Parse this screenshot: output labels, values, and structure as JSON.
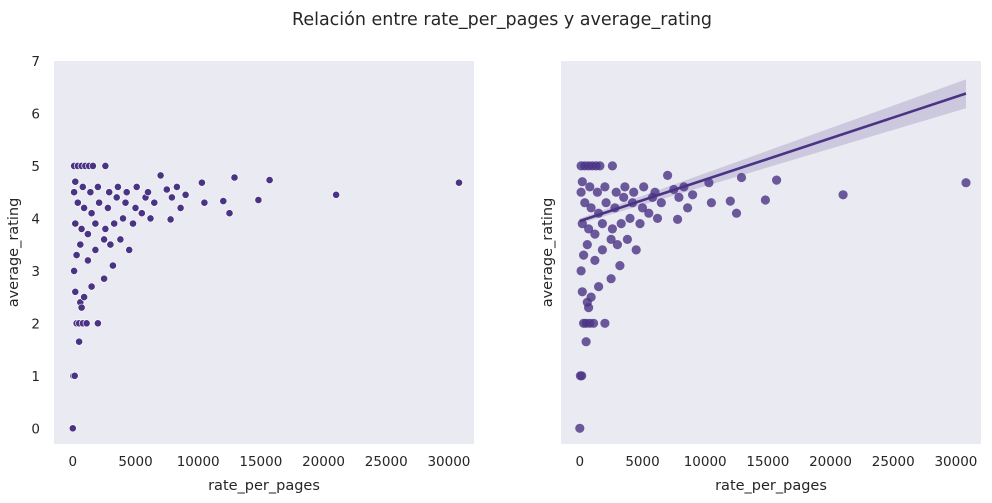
{
  "figure": {
    "title": "Relación entre rate_per_pages y average_rating",
    "background": "#ffffff",
    "axes_face": "#eaeaf2",
    "point_color": "#4a3384",
    "line_color": "#4a3384"
  },
  "chart_data": [
    {
      "type": "scatter",
      "xlabel": "rate_per_pages",
      "ylabel": "average_rating",
      "xlim": [
        -1500,
        32000
      ],
      "ylim": [
        -0.3,
        7.0
      ],
      "x_ticks": [
        0,
        5000,
        10000,
        15000,
        20000,
        25000,
        30000
      ],
      "y_ticks": [
        0,
        1,
        2,
        3,
        4,
        5,
        6,
        7
      ],
      "grid": false,
      "series": [
        {
          "points": [
            [
              0,
              0
            ],
            [
              50,
              1
            ],
            [
              150,
              1
            ],
            [
              300,
              2
            ],
            [
              500,
              2
            ],
            [
              800,
              2
            ],
            [
              1100,
              2
            ],
            [
              2000,
              2
            ],
            [
              500,
              1.65
            ],
            [
              200,
              2.6
            ],
            [
              600,
              2.4
            ],
            [
              700,
              2.3
            ],
            [
              900,
              2.5
            ],
            [
              1500,
              2.7
            ],
            [
              2500,
              2.85
            ],
            [
              3200,
              3.1
            ],
            [
              100,
              3.0
            ],
            [
              300,
              3.3
            ],
            [
              600,
              3.5
            ],
            [
              1200,
              3.2
            ],
            [
              1800,
              3.4
            ],
            [
              2500,
              3.6
            ],
            [
              3000,
              3.5
            ],
            [
              3800,
              3.6
            ],
            [
              4500,
              3.4
            ],
            [
              200,
              3.9
            ],
            [
              700,
              3.8
            ],
            [
              1200,
              3.7
            ],
            [
              1800,
              3.9
            ],
            [
              2600,
              3.8
            ],
            [
              3300,
              3.9
            ],
            [
              4000,
              4.0
            ],
            [
              4800,
              3.9
            ],
            [
              5500,
              4.1
            ],
            [
              6200,
              4.0
            ],
            [
              100,
              4.5
            ],
            [
              400,
              4.3
            ],
            [
              900,
              4.2
            ],
            [
              1500,
              4.1
            ],
            [
              2100,
              4.3
            ],
            [
              2800,
              4.2
            ],
            [
              3500,
              4.4
            ],
            [
              4200,
              4.3
            ],
            [
              5000,
              4.2
            ],
            [
              5800,
              4.4
            ],
            [
              6500,
              4.3
            ],
            [
              200,
              4.7
            ],
            [
              800,
              4.6
            ],
            [
              1400,
              4.5
            ],
            [
              2000,
              4.6
            ],
            [
              2900,
              4.5
            ],
            [
              3600,
              4.6
            ],
            [
              4300,
              4.5
            ],
            [
              5100,
              4.6
            ],
            [
              6000,
              4.5
            ],
            [
              100,
              5.0
            ],
            [
              400,
              5.0
            ],
            [
              700,
              5.0
            ],
            [
              1000,
              5.0
            ],
            [
              1300,
              5.0
            ],
            [
              1600,
              5.0
            ],
            [
              2600,
              5.0
            ],
            [
              7000,
              4.82
            ],
            [
              7500,
              4.55
            ],
            [
              7900,
              4.4
            ],
            [
              8300,
              4.6
            ],
            [
              8600,
              4.2
            ],
            [
              7800,
              3.98
            ],
            [
              9000,
              4.45
            ],
            [
              10300,
              4.68
            ],
            [
              10500,
              4.3
            ],
            [
              12000,
              4.33
            ],
            [
              12500,
              4.1
            ],
            [
              12900,
              4.78
            ],
            [
              14800,
              4.35
            ],
            [
              15700,
              4.73
            ],
            [
              21000,
              4.45
            ],
            [
              30800,
              4.68
            ]
          ]
        }
      ]
    },
    {
      "type": "scatter",
      "xlabel": "rate_per_pages",
      "ylabel": "average_rating",
      "xlim": [
        -1500,
        32000
      ],
      "ylim": [
        -0.3,
        7.0
      ],
      "x_ticks": [
        0,
        5000,
        10000,
        15000,
        20000,
        25000,
        30000
      ],
      "y_ticks": [],
      "grid": false,
      "series": [
        {
          "points": [
            [
              0,
              0
            ],
            [
              50,
              1
            ],
            [
              150,
              1
            ],
            [
              300,
              2
            ],
            [
              500,
              2
            ],
            [
              800,
              2
            ],
            [
              1100,
              2
            ],
            [
              2000,
              2
            ],
            [
              500,
              1.65
            ],
            [
              200,
              2.6
            ],
            [
              600,
              2.4
            ],
            [
              700,
              2.3
            ],
            [
              900,
              2.5
            ],
            [
              1500,
              2.7
            ],
            [
              2500,
              2.85
            ],
            [
              3200,
              3.1
            ],
            [
              100,
              3.0
            ],
            [
              300,
              3.3
            ],
            [
              600,
              3.5
            ],
            [
              1200,
              3.2
            ],
            [
              1800,
              3.4
            ],
            [
              2500,
              3.6
            ],
            [
              3000,
              3.5
            ],
            [
              3800,
              3.6
            ],
            [
              4500,
              3.4
            ],
            [
              200,
              3.9
            ],
            [
              700,
              3.8
            ],
            [
              1200,
              3.7
            ],
            [
              1800,
              3.9
            ],
            [
              2600,
              3.8
            ],
            [
              3300,
              3.9
            ],
            [
              4000,
              4.0
            ],
            [
              4800,
              3.9
            ],
            [
              5500,
              4.1
            ],
            [
              6200,
              4.0
            ],
            [
              100,
              4.5
            ],
            [
              400,
              4.3
            ],
            [
              900,
              4.2
            ],
            [
              1500,
              4.1
            ],
            [
              2100,
              4.3
            ],
            [
              2800,
              4.2
            ],
            [
              3500,
              4.4
            ],
            [
              4200,
              4.3
            ],
            [
              5000,
              4.2
            ],
            [
              5800,
              4.4
            ],
            [
              6500,
              4.3
            ],
            [
              200,
              4.7
            ],
            [
              800,
              4.6
            ],
            [
              1400,
              4.5
            ],
            [
              2000,
              4.6
            ],
            [
              2900,
              4.5
            ],
            [
              3600,
              4.6
            ],
            [
              4300,
              4.5
            ],
            [
              5100,
              4.6
            ],
            [
              6000,
              4.5
            ],
            [
              100,
              5.0
            ],
            [
              400,
              5.0
            ],
            [
              700,
              5.0
            ],
            [
              1000,
              5.0
            ],
            [
              1300,
              5.0
            ],
            [
              1600,
              5.0
            ],
            [
              2600,
              5.0
            ],
            [
              7000,
              4.82
            ],
            [
              7500,
              4.55
            ],
            [
              7900,
              4.4
            ],
            [
              8300,
              4.6
            ],
            [
              8600,
              4.2
            ],
            [
              7800,
              3.98
            ],
            [
              9000,
              4.45
            ],
            [
              10300,
              4.68
            ],
            [
              10500,
              4.3
            ],
            [
              12000,
              4.33
            ],
            [
              12500,
              4.1
            ],
            [
              12900,
              4.78
            ],
            [
              14800,
              4.35
            ],
            [
              15700,
              4.73
            ],
            [
              21000,
              4.45
            ],
            [
              30800,
              4.68
            ]
          ]
        }
      ],
      "regression_line": {
        "x": [
          0,
          30800
        ],
        "y": [
          3.95,
          6.38
        ],
        "ci_upper": [
          4.0,
          6.65
        ],
        "ci_lower": [
          3.9,
          6.1
        ]
      }
    }
  ]
}
